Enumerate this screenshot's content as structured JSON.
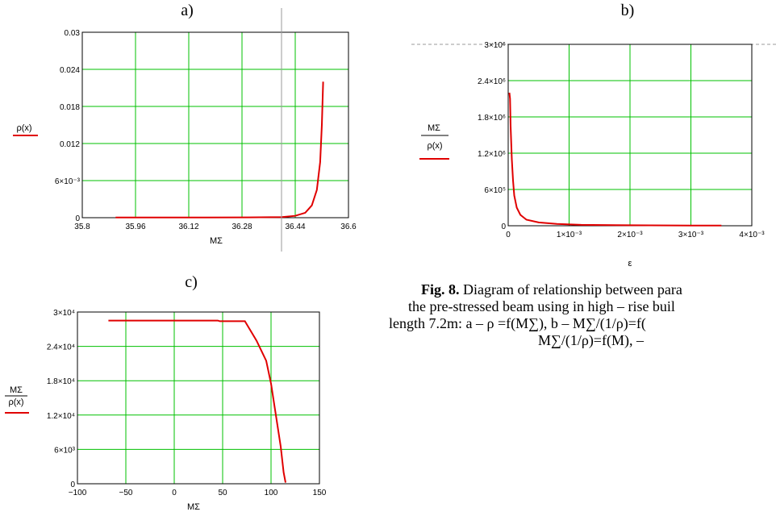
{
  "panels": [
    {
      "label": "a)"
    },
    {
      "label": "b)"
    },
    {
      "label": "c)"
    }
  ],
  "chart_data": [
    {
      "type": "line",
      "panel": "a)",
      "xlabel": "MΣ",
      "ylabel": "ρ(x)",
      "xlim": [
        35.8,
        36.6
      ],
      "ylim": [
        0,
        0.03
      ],
      "x_ticks": [
        "35.8",
        "35.96",
        "36.12",
        "36.28",
        "36.44",
        "36.6"
      ],
      "y_ticks": [
        "0",
        "6×10⁻³",
        "0.012",
        "0.018",
        "0.024",
        "0.03"
      ],
      "grid": true,
      "series": [
        {
          "color": "#e00000",
          "x": [
            35.9,
            36.1,
            36.3,
            36.4,
            36.44,
            36.47,
            36.49,
            36.505,
            36.515,
            36.52,
            36.524
          ],
          "y": [
            3e-05,
            3e-05,
            5e-05,
            0.0001,
            0.0003,
            0.0008,
            0.002,
            0.0045,
            0.009,
            0.015,
            0.022
          ]
        }
      ]
    },
    {
      "type": "line",
      "panel": "b)",
      "xlabel": "ε",
      "ylabel": "MΣ / ρ(x)",
      "xlim": [
        0,
        0.004
      ],
      "ylim": [
        0,
        3000000
      ],
      "x_ticks": [
        "0",
        "1×10⁻³",
        "2×10⁻³",
        "3×10⁻³",
        "4×10⁻³"
      ],
      "y_ticks": [
        "0",
        "6×10⁵",
        "1.2×10⁶",
        "1.8×10⁶",
        "2.4×10⁶",
        "3×10⁶"
      ],
      "grid": true,
      "series": [
        {
          "color": "#e00000",
          "x": [
            2e-05,
            3e-05,
            4e-05,
            6e-05,
            8e-05,
            0.0001,
            0.00014,
            0.0002,
            0.0003,
            0.0005,
            0.0008,
            0.0012,
            0.002,
            0.003,
            0.0035
          ],
          "y": [
            2200000,
            2100000,
            1650000,
            1100000,
            750000,
            500000,
            300000,
            180000,
            100000,
            55000,
            30000,
            15000,
            8000,
            4000,
            3000
          ]
        }
      ]
    },
    {
      "type": "line",
      "panel": "c)",
      "xlabel": "MΣ",
      "ylabel": "MΣ / ρ(x)",
      "xlim": [
        -100,
        150
      ],
      "ylim": [
        0,
        30000
      ],
      "x_ticks": [
        "−100",
        "−50",
        "0",
        "50",
        "100",
        "150"
      ],
      "y_ticks": [
        "0",
        "6×10³",
        "1.2×10⁴",
        "1.8×10⁴",
        "2.4×10⁴",
        "3×10⁴"
      ],
      "grid": true,
      "series": [
        {
          "color": "#e00000",
          "x": [
            -68,
            45,
            47,
            73,
            85,
            95,
            100,
            105,
            110,
            113,
            115
          ],
          "y": [
            28500,
            28500,
            28400,
            28400,
            25000,
            21500,
            17500,
            12000,
            6500,
            2000,
            200
          ]
        }
      ]
    }
  ],
  "caption": {
    "fig": "Fig. 8.",
    "line1": " Diagram of relationship between para",
    "line2": "the pre-stressed beam using in high – rise buil",
    "line3": "length 7.2m: a – ρ =f(M∑), b – M∑/(1/ρ)=f(",
    "line4": "M∑/(1/ρ)=f(M),  –"
  }
}
